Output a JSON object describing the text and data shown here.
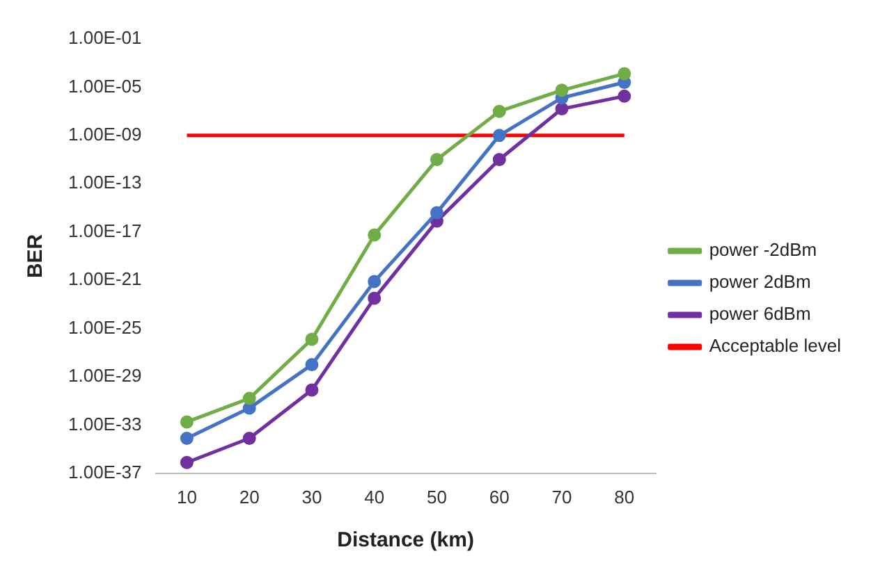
{
  "chart_data": {
    "type": "line",
    "xlabel": "Distance (km)",
    "ylabel": "BER",
    "categories": [
      "10",
      "20",
      "30",
      "40",
      "50",
      "60",
      "70",
      "80"
    ],
    "series": [
      {
        "name": "power -2dBm",
        "color": "#70ad47",
        "values": [
          1.8e-33,
          1.6e-31,
          1.3e-26,
          5.6e-18,
          1e-11,
          1e-07,
          5.6e-06,
          0.00013
        ]
      },
      {
        "name": "power 2dBm",
        "color": "#4472c4",
        "values": [
          7.9e-35,
          2.5e-32,
          1e-28,
          7.9e-22,
          4e-16,
          1e-09,
          1.3e-06,
          2.5e-05
        ]
      },
      {
        "name": "power 6dBm",
        "color": "#7030a0",
        "values": [
          7.9e-37,
          7.9e-35,
          7.9e-31,
          3.2e-23,
          7.9e-17,
          1e-11,
          1.6e-07,
          1.8e-06
        ]
      },
      {
        "name": "Acceptable level",
        "color": "#ff0000",
        "marker": "none",
        "values": [
          1e-09,
          1e-09,
          1e-09,
          1e-09,
          1e-09,
          1e-09,
          1e-09,
          1e-09
        ]
      }
    ],
    "log": "y",
    "ylim": [
      1e-37,
      0.1
    ],
    "yticks": [
      {
        "value": 1e-37,
        "label": "1.00E-37"
      },
      {
        "value": 1e-33,
        "label": "1.00E-33"
      },
      {
        "value": 1e-29,
        "label": "1.00E-29"
      },
      {
        "value": 1e-25,
        "label": "1.00E-25"
      },
      {
        "value": 1e-21,
        "label": "1.00E-21"
      },
      {
        "value": 1e-17,
        "label": "1.00E-17"
      },
      {
        "value": 1e-13,
        "label": "1.00E-13"
      },
      {
        "value": 1e-09,
        "label": "1.00E-09"
      },
      {
        "value": 1e-05,
        "label": "1.00E-05"
      },
      {
        "value": 0.1,
        "label": "1.00E-01"
      }
    ],
    "grid": false,
    "legend": "right",
    "marker": "circle",
    "line_style": "solid"
  }
}
